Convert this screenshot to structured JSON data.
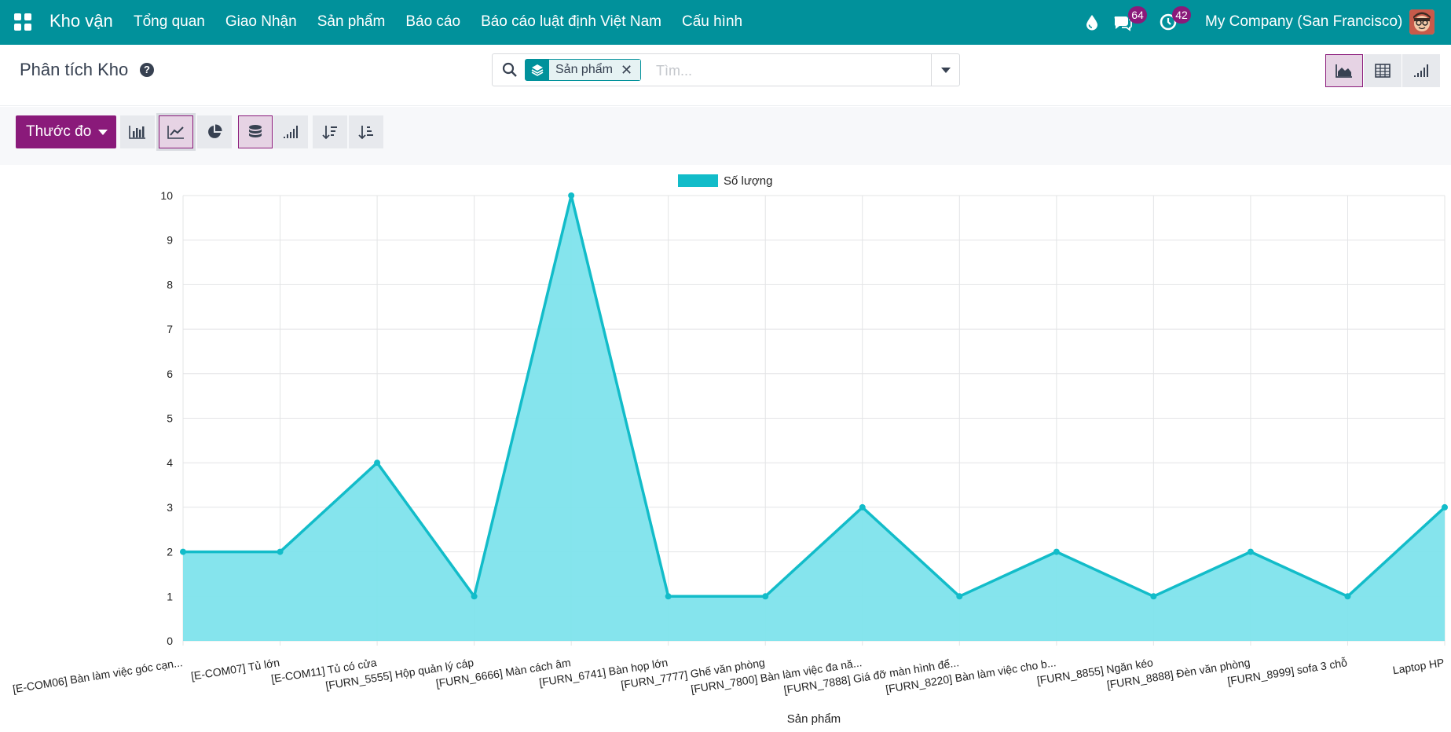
{
  "navbar": {
    "app_name": "Kho vận",
    "menu": [
      "Tổng quan",
      "Giao Nhận",
      "Sản phẩm",
      "Báo cáo",
      "Báo cáo luật định Việt Nam",
      "Cấu hình"
    ],
    "chat_count": "64",
    "activity_count": "42",
    "company": "My Company (San Francisco)"
  },
  "control": {
    "title": "Phân tích Kho",
    "search_facet": "Sản phẩm",
    "search_placeholder": "Tìm..."
  },
  "toolbar": {
    "measure_label": "Thước đo"
  },
  "colors": {
    "navbar": "#01919b",
    "accent": "#8a1a7a",
    "series_line": "#12bcc9",
    "series_fill": "#7ee3ec"
  },
  "chart_data": {
    "type": "area",
    "xlabel": "Sản phẩm",
    "ylabel": "",
    "ylim": [
      0,
      10
    ],
    "yticks": [
      0,
      1,
      2,
      3,
      4,
      5,
      6,
      7,
      8,
      9,
      10
    ],
    "grid": true,
    "legend_position": "top-center",
    "categories": [
      "[E-COM06] Bàn làm việc góc cạn...",
      "[E-COM07] Tủ lớn",
      "[E-COM11] Tủ có cửa",
      "[FURN_5555] Hộp quản lý cáp",
      "[FURN_6666] Màn cách âm",
      "[FURN_6741] Bàn họp lớn",
      "[FURN_7777] Ghế văn phòng",
      "[FURN_7800] Bàn làm việc đa nă...",
      "[FURN_7888] Giá đỡ màn hình để...",
      "[FURN_8220] Bàn làm việc cho b...",
      "[FURN_8855] Ngăn kéo",
      "[FURN_8888] Đèn văn phòng",
      "[FURN_8999] sofa 3 chỗ",
      "Laptop HP"
    ],
    "series": [
      {
        "name": "Số lượng",
        "values": [
          2,
          2,
          4,
          1,
          10,
          1,
          1,
          3,
          1,
          2,
          1,
          2,
          1,
          3
        ]
      }
    ]
  }
}
